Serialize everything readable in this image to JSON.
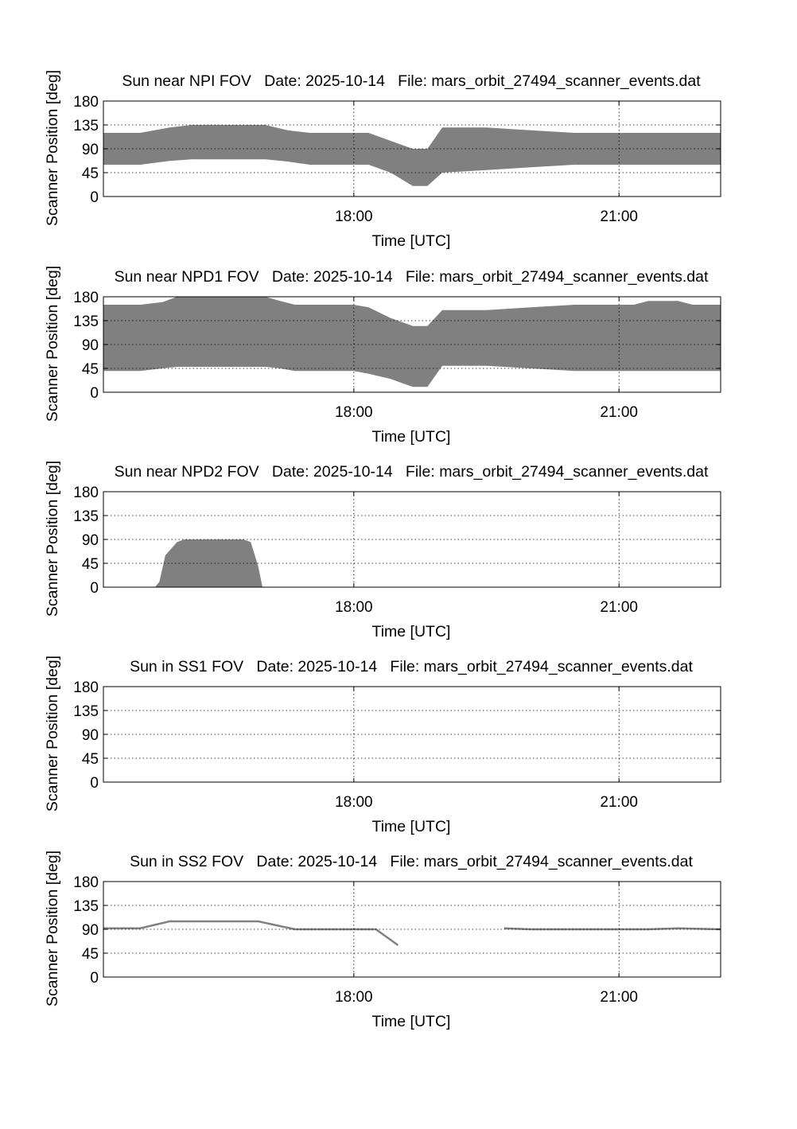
{
  "chart_data": [
    {
      "type": "area",
      "title": "Sun near NPI FOV   Date: 2025-10-14   File: mars_orbit_27494_scanner_events.dat",
      "xlabel": "Time [UTC]",
      "ylabel": "Scanner Position [deg]",
      "xlim": [
        "15:10",
        "22:09"
      ],
      "ylim": [
        0,
        180
      ],
      "x_ticks": [
        "18:00",
        "21:00"
      ],
      "y_ticks": [
        0,
        45,
        90,
        135,
        180
      ],
      "grid": true,
      "fill_color": "#808080",
      "series": [
        {
          "x": [
            "15:10",
            "15:35",
            "15:55",
            "16:10",
            "17:00",
            "17:15",
            "17:30",
            "18:00",
            "18:10",
            "18:25",
            "18:40",
            "18:45",
            "18:50",
            "19:00",
            "19:30",
            "20:00",
            "20:30",
            "21:00",
            "21:30",
            "22:09"
          ],
          "lower": [
            60,
            60,
            67,
            70,
            70,
            66,
            60,
            60,
            60,
            45,
            20,
            20,
            20,
            45,
            50,
            55,
            60,
            60,
            60,
            60
          ],
          "upper": [
            120,
            120,
            130,
            135,
            135,
            125,
            120,
            120,
            120,
            105,
            90,
            90,
            90,
            130,
            130,
            125,
            120,
            120,
            120,
            120
          ]
        }
      ]
    },
    {
      "type": "area",
      "title": "Sun near NPD1 FOV   Date: 2025-10-14   File: mars_orbit_27494_scanner_events.dat",
      "xlabel": "Time [UTC]",
      "ylabel": "Scanner Position [deg]",
      "xlim": [
        "15:10",
        "22:09"
      ],
      "ylim": [
        0,
        180
      ],
      "x_ticks": [
        "18:00",
        "21:00"
      ],
      "y_ticks": [
        0,
        45,
        90,
        135,
        180
      ],
      "grid": true,
      "fill_color": "#808080",
      "series": [
        {
          "x": [
            "15:10",
            "15:35",
            "15:50",
            "16:00",
            "17:00",
            "17:10",
            "17:20",
            "18:00",
            "18:10",
            "18:25",
            "18:40",
            "18:45",
            "18:50",
            "19:00",
            "19:30",
            "20:00",
            "20:30",
            "21:00",
            "21:10",
            "21:20",
            "21:40",
            "21:50",
            "22:09"
          ],
          "lower": [
            40,
            40,
            45,
            48,
            48,
            45,
            40,
            40,
            35,
            25,
            10,
            10,
            10,
            50,
            50,
            45,
            40,
            40,
            40,
            40,
            40,
            40,
            40
          ],
          "upper": [
            165,
            165,
            170,
            180,
            180,
            172,
            165,
            165,
            160,
            140,
            125,
            125,
            125,
            155,
            155,
            160,
            165,
            165,
            165,
            172,
            172,
            165,
            165
          ]
        }
      ]
    },
    {
      "type": "area",
      "title": "Sun near NPD2 FOV   Date: 2025-10-14   File: mars_orbit_27494_scanner_events.dat",
      "xlabel": "Time [UTC]",
      "ylabel": "Scanner Position [deg]",
      "xlim": [
        "15:10",
        "22:09"
      ],
      "ylim": [
        0,
        180
      ],
      "x_ticks": [
        "18:00",
        "21:00"
      ],
      "y_ticks": [
        0,
        45,
        90,
        135,
        180
      ],
      "grid": true,
      "fill_color": "#808080",
      "series": [
        {
          "x": [
            "15:10",
            "15:45",
            "15:48",
            "15:52",
            "16:00",
            "16:05",
            "16:45",
            "16:50",
            "16:55",
            "16:58",
            "17:10",
            "22:09"
          ],
          "lower": [
            0,
            0,
            0,
            0,
            0,
            0,
            0,
            0,
            0,
            0,
            0,
            0
          ],
          "upper": [
            0,
            0,
            10,
            60,
            85,
            90,
            90,
            85,
            40,
            0,
            0,
            0
          ]
        }
      ]
    },
    {
      "type": "area",
      "title": "Sun in SS1 FOV   Date: 2025-10-14   File: mars_orbit_27494_scanner_events.dat",
      "xlabel": "Time [UTC]",
      "ylabel": "Scanner Position [deg]",
      "xlim": [
        "15:10",
        "22:09"
      ],
      "ylim": [
        0,
        180
      ],
      "x_ticks": [
        "18:00",
        "21:00"
      ],
      "y_ticks": [
        0,
        45,
        90,
        135,
        180
      ],
      "grid": true,
      "fill_color": "#808080",
      "series": []
    },
    {
      "type": "line",
      "title": "Sun in SS2 FOV   Date: 2025-10-14   File: mars_orbit_27494_scanner_events.dat",
      "xlabel": "Time [UTC]",
      "ylabel": "Scanner Position [deg]",
      "xlim": [
        "15:10",
        "22:09"
      ],
      "ylim": [
        0,
        180
      ],
      "x_ticks": [
        "18:00",
        "21:00"
      ],
      "y_ticks": [
        0,
        45,
        90,
        135,
        180
      ],
      "grid": true,
      "line_color": "#808080",
      "series": [
        {
          "x": [
            "15:10",
            "15:35",
            "15:55",
            "16:55",
            "17:20",
            "18:00",
            "18:15",
            "18:30"
          ],
          "y": [
            92,
            92,
            105,
            105,
            90,
            90,
            90,
            60
          ]
        },
        {
          "x": [
            "19:42",
            "20:00",
            "21:00",
            "21:20",
            "21:40",
            "22:09"
          ],
          "y": [
            92,
            90,
            90,
            90,
            92,
            90
          ]
        }
      ]
    }
  ]
}
